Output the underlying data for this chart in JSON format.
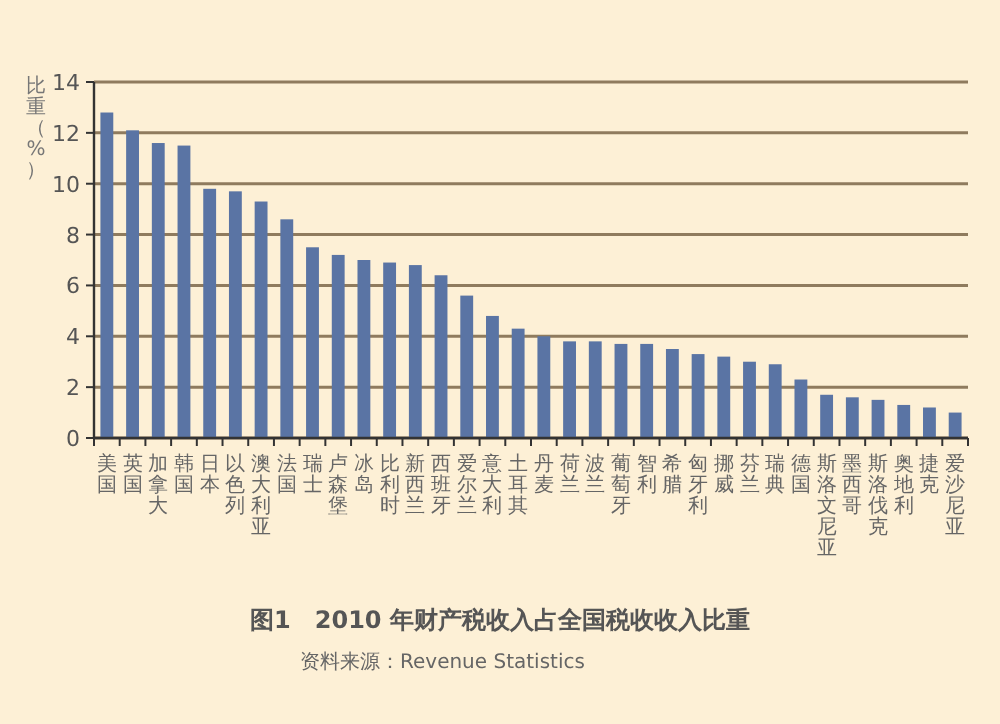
{
  "chart_data": {
    "type": "bar",
    "title": "图1　2010 年财产税收入占全国税收收入比重",
    "ylabel": "比重（%）",
    "annotations": [
      "资料来源：Revenue Statistics"
    ],
    "categories": [
      "美国",
      "英国",
      "加拿大",
      "韩国",
      "日本",
      "以色列",
      "澳大利亚",
      "法国",
      "瑞士",
      "卢森堡",
      "冰岛",
      "比利时",
      "新西兰",
      "西班牙",
      "爱尔兰",
      "意大利",
      "土耳其",
      "丹麦",
      "荷兰",
      "波兰",
      "葡萄牙",
      "智利",
      "希腊",
      "匈牙利",
      "挪威",
      "芬兰",
      "瑞典",
      "德国",
      "斯洛文尼亚",
      "墨西哥",
      "斯洛伐克",
      "奥地利",
      "捷克",
      "爱沙尼亚"
    ],
    "series": [
      {
        "color": "#5a74a4",
        "values": [
          12.8,
          12.1,
          11.6,
          11.5,
          9.8,
          9.7,
          9.3,
          8.6,
          7.5,
          7.2,
          7.0,
          6.9,
          6.8,
          6.4,
          5.6,
          4.8,
          4.3,
          4.0,
          3.8,
          3.8,
          3.7,
          3.7,
          3.5,
          3.3,
          3.2,
          3.0,
          2.9,
          2.3,
          1.7,
          1.6,
          1.5,
          1.3,
          1.2,
          1.0
        ]
      }
    ],
    "ylim": [
      0,
      14
    ],
    "yticks": [
      0,
      2,
      4,
      6,
      8,
      10,
      12,
      14
    ],
    "grid": "y"
  }
}
